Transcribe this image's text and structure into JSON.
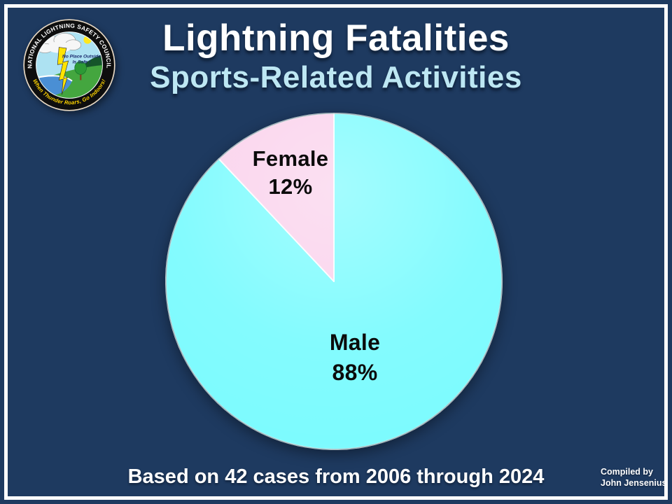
{
  "slide": {
    "background_color": "#1e3a60",
    "frame_color": "#ffffff"
  },
  "logo": {
    "name": "national-lightning-safety-council-seal",
    "ring_text_top": "NATIONAL LIGHTNING SAFETY COUNCIL",
    "ring_text_bottom": "When Thunder Roars, Go Indoors!",
    "center_line1": "No Place Outside",
    "center_line2": "Is Safe !"
  },
  "header": {
    "title": "Lightning Fatalities",
    "subtitle": "Sports-Related Activities",
    "title_color": "#ffffff",
    "subtitle_color": "#bde7f3"
  },
  "chart_data": {
    "type": "pie",
    "title": "Lightning Fatalities — Sports-Related Activities",
    "categories": [
      "Male",
      "Female"
    ],
    "values": [
      88,
      12
    ],
    "unit": "%",
    "colors": [
      "#7dfbfe",
      "#fad2ec"
    ],
    "start_angle_deg": 0,
    "direction": "clockwise",
    "legend": "none",
    "labels": {
      "male_name": "Male",
      "male_value": "88%",
      "female_name": "Female",
      "female_value": "12%"
    }
  },
  "footer": {
    "caption": "Based on 42 cases from 2006 through 2024",
    "credit_line1": "Compiled by",
    "credit_line2": "John Jensenius"
  }
}
